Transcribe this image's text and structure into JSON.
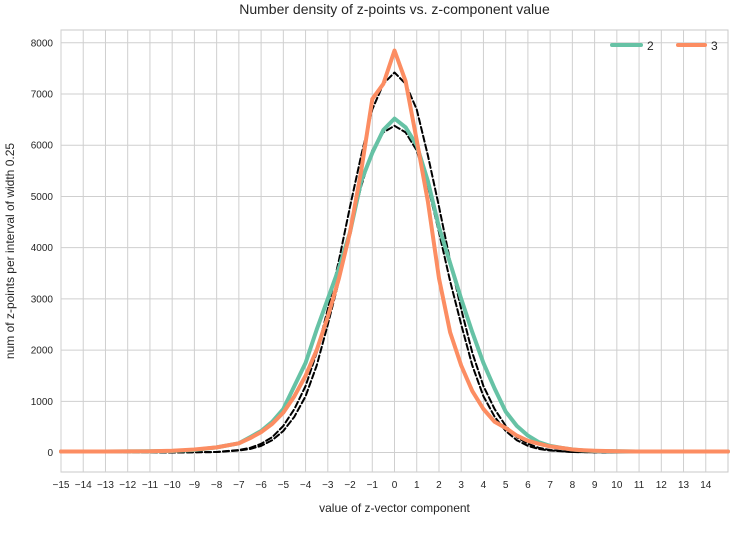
{
  "chart_data": {
    "type": "line",
    "title": "Number density of z-points vs. z-component value",
    "xlabel": "value of z-vector component",
    "ylabel": "num of z-points per interval of width 0.25",
    "xlim": [
      -15,
      15
    ],
    "ylim": [
      -380,
      8250
    ],
    "xticks": [
      -15,
      -14,
      -13,
      -12,
      -11,
      -10,
      -9,
      -8,
      -7,
      -6,
      -5,
      -4,
      -3,
      -2,
      -1,
      0,
      1,
      2,
      3,
      4,
      5,
      6,
      7,
      8,
      9,
      10,
      11,
      12,
      13,
      14
    ],
    "yticks": [
      0,
      1000,
      2000,
      3000,
      4000,
      5000,
      6000,
      7000,
      8000
    ],
    "grid": true,
    "legend_position": "top-right",
    "series": [
      {
        "name": "2",
        "color": "#66c2a5",
        "style": "solid",
        "x": [
          -15,
          -13,
          -11,
          -10,
          -9,
          -8,
          -7,
          -6.5,
          -6,
          -5.5,
          -5,
          -4.5,
          -4,
          -3.5,
          -3,
          -2.5,
          -2,
          -1.5,
          -1,
          -0.5,
          0,
          0.5,
          1,
          1.5,
          2,
          2.5,
          3,
          3.5,
          4,
          4.5,
          5,
          5.5,
          6,
          6.5,
          7,
          7.5,
          8,
          8.5,
          9,
          10,
          11,
          13,
          15
        ],
        "y": [
          20,
          20,
          25,
          30,
          50,
          100,
          180,
          300,
          420,
          600,
          850,
          1300,
          1750,
          2400,
          3000,
          3600,
          4300,
          5300,
          5850,
          6300,
          6520,
          6350,
          6000,
          5300,
          4400,
          3700,
          3000,
          2350,
          1750,
          1250,
          800,
          520,
          330,
          200,
          130,
          90,
          60,
          40,
          30,
          25,
          20,
          20,
          20
        ]
      },
      {
        "name": "3",
        "color": "#fc8d62",
        "style": "solid",
        "x": [
          -15,
          -13,
          -11,
          -10,
          -9,
          -8,
          -7,
          -6.5,
          -6,
          -5.5,
          -5,
          -4.5,
          -4,
          -3.5,
          -3,
          -2.5,
          -2,
          -1.5,
          -1,
          -0.5,
          0,
          0.5,
          1,
          1.5,
          2,
          2.5,
          3,
          3.5,
          4,
          4.5,
          5,
          5.5,
          6,
          6.5,
          7,
          7.5,
          8,
          8.5,
          9,
          10,
          11,
          13,
          15
        ],
        "y": [
          20,
          20,
          25,
          35,
          60,
          100,
          180,
          280,
          400,
          560,
          780,
          1100,
          1500,
          2000,
          2650,
          3400,
          4300,
          5500,
          6900,
          7200,
          7850,
          7250,
          6100,
          4900,
          3400,
          2350,
          1700,
          1200,
          850,
          600,
          480,
          330,
          230,
          170,
          120,
          90,
          60,
          45,
          35,
          25,
          20,
          20,
          20
        ]
      },
      {
        "name": "",
        "color": "#000000",
        "style": "dashed",
        "x": [
          -15,
          -10,
          -8,
          -7,
          -6.5,
          -6,
          -5.5,
          -5,
          -4.5,
          -4,
          -3.5,
          -3,
          -2.5,
          -2,
          -1.5,
          -1,
          -0.5,
          0,
          0.5,
          1,
          1.5,
          2,
          2.5,
          3,
          3.5,
          4,
          4.5,
          5,
          5.5,
          6,
          6.5,
          7,
          8,
          10,
          15
        ],
        "y": [
          0,
          0,
          10,
          40,
          70,
          130,
          240,
          420,
          700,
          1100,
          1700,
          2500,
          3350,
          4300,
          5200,
          5900,
          6250,
          6380,
          6250,
          5900,
          5200,
          4300,
          3350,
          2500,
          1700,
          1100,
          700,
          420,
          240,
          130,
          70,
          40,
          10,
          0,
          0
        ]
      },
      {
        "name": "",
        "color": "#000000",
        "style": "dashed",
        "x": [
          -15,
          -10,
          -8,
          -7,
          -6.5,
          -6,
          -5.5,
          -5,
          -4.5,
          -4,
          -3.5,
          -3,
          -2.5,
          -2,
          -1.5,
          -1,
          -0.5,
          0,
          0.5,
          1,
          1.5,
          2,
          2.5,
          3,
          3.5,
          4,
          4.5,
          5,
          5.5,
          6,
          6.5,
          7,
          8,
          10,
          15
        ],
        "y": [
          0,
          0,
          10,
          50,
          90,
          170,
          300,
          520,
          850,
          1300,
          1950,
          2800,
          3750,
          4800,
          5800,
          6700,
          7200,
          7420,
          7200,
          6700,
          5800,
          4800,
          3750,
          2800,
          1950,
          1300,
          850,
          520,
          300,
          170,
          90,
          50,
          10,
          0,
          0
        ]
      }
    ]
  }
}
